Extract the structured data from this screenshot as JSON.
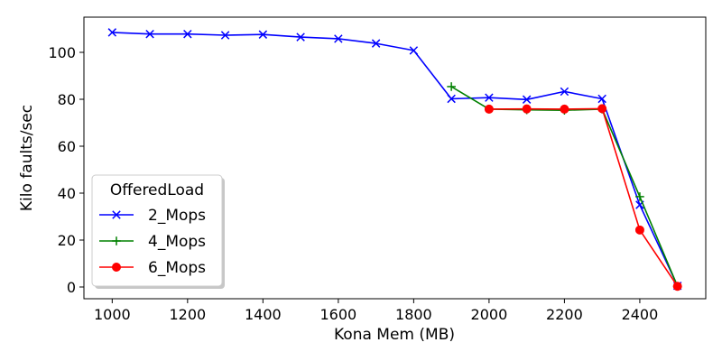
{
  "chart_data": {
    "type": "line",
    "xlabel": "Kona Mem (MB)",
    "ylabel": "Kilo faults/sec",
    "xlim": [
      925,
      2575
    ],
    "ylim": [
      -5,
      115
    ],
    "xticks": [
      1000,
      1200,
      1400,
      1600,
      1800,
      2000,
      2200,
      2400
    ],
    "yticks": [
      0,
      20,
      40,
      60,
      80,
      100
    ],
    "grid": false,
    "legend": {
      "title": "OfferedLoad",
      "placement": "lower-left"
    },
    "series": [
      {
        "name": "2_Mops",
        "color": "#0000ff",
        "marker": "x",
        "x": [
          1000,
          1100,
          1200,
          1300,
          1400,
          1500,
          1600,
          1700,
          1800,
          1900,
          2000,
          2100,
          2200,
          2300,
          2400,
          2500
        ],
        "y": [
          108.5,
          107.8,
          107.8,
          107.3,
          107.6,
          106.5,
          105.8,
          103.8,
          100.8,
          80.2,
          80.7,
          79.9,
          83.3,
          80.2,
          35,
          0.5
        ]
      },
      {
        "name": "4_Mops",
        "color": "#008000",
        "marker": "+",
        "x": [
          1900,
          2000,
          2100,
          2200,
          2300,
          2400,
          2500
        ],
        "y": [
          85.4,
          75.8,
          75.5,
          75.3,
          75.8,
          38.5,
          0.3
        ]
      },
      {
        "name": "6_Mops",
        "color": "#ff0000",
        "marker": "o",
        "x": [
          2000,
          2100,
          2200,
          2300,
          2400,
          2500
        ],
        "y": [
          75.8,
          75.9,
          75.8,
          76.0,
          24.3,
          0.3
        ]
      }
    ]
  }
}
